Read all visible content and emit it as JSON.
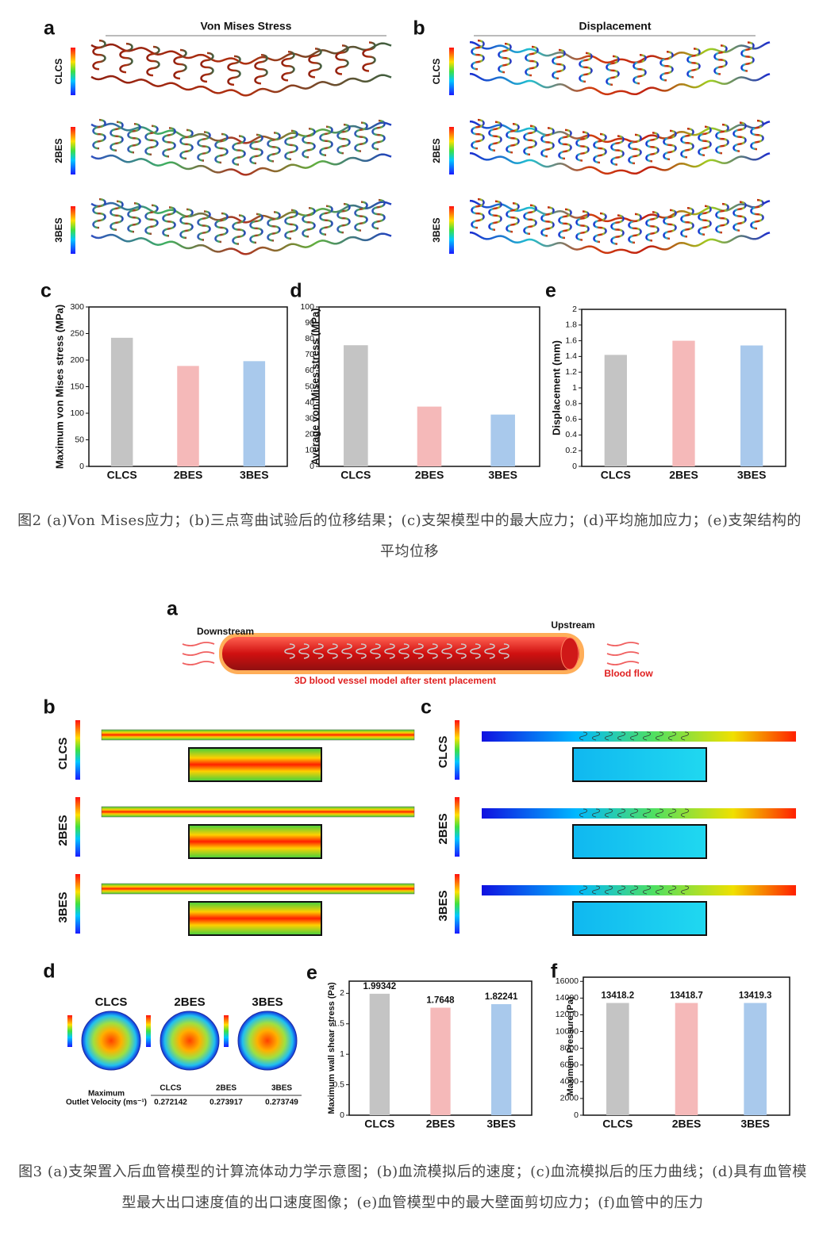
{
  "fig2": {
    "panel_labels": [
      "a",
      "b",
      "c",
      "d",
      "e"
    ],
    "a_title": "Von Mises Stress",
    "b_title": "Displacement",
    "rows": [
      "CLCS",
      "2BES",
      "3BES"
    ],
    "caption": "图2 (a)Von Mises应力；(b)三点弯曲试验后的位移结果；(c)支架模型中的最大应力；(d)平均施加应力；(e)支架结构的平均位移"
  },
  "fig3": {
    "panel_labels": [
      "a",
      "b",
      "c",
      "d",
      "e",
      "f"
    ],
    "rows": [
      "CLCS",
      "2BES",
      "3BES"
    ],
    "schematic": {
      "downstream": "Downstream",
      "upstream": "Upstream",
      "model": "3D blood vessel model after stent placement",
      "flow": "Blood flow"
    },
    "outlet": {
      "label": [
        "Maximum",
        "Outlet Velocity (ms⁻¹)"
      ],
      "values": [
        0.272142,
        0.273917,
        0.273749
      ]
    },
    "caption": "图3 (a)支架置入后血管模型的计算流体动力学示意图；(b)血流模拟后的速度；(c)血流模拟后的压力曲线；(d)具有血管模型最大出口速度值的出口速度图像；(e)血管模型中的最大壁面剪切应力；(f)血管中的压力"
  },
  "chart_data": [
    {
      "type": "bar",
      "ylabel": "Maximum von Mises stress (MPa)",
      "categories": [
        "CLCS",
        "2BES",
        "3BES"
      ],
      "values": [
        242,
        189,
        198
      ],
      "colors": [
        "#c4c4c4",
        "#f5b9b9",
        "#a9c9ec"
      ],
      "ylim": [
        0,
        300
      ],
      "yticks": [
        0,
        50,
        100,
        150,
        200,
        250,
        300
      ],
      "data_labels": false
    },
    {
      "type": "bar",
      "ylabel": "Average von Mises stress (MPa)",
      "categories": [
        "CLCS",
        "2BES",
        "3BES"
      ],
      "values": [
        76,
        37.5,
        32.5
      ],
      "colors": [
        "#c4c4c4",
        "#f5b9b9",
        "#a9c9ec"
      ],
      "ylim": [
        0,
        100
      ],
      "yticks": [
        0,
        10,
        20,
        30,
        40,
        50,
        60,
        70,
        80,
        90,
        100
      ],
      "data_labels": false
    },
    {
      "type": "bar",
      "ylabel": "Displacement (mm)",
      "categories": [
        "CLCS",
        "2BES",
        "3BES"
      ],
      "values": [
        1.42,
        1.6,
        1.54
      ],
      "colors": [
        "#c4c4c4",
        "#f5b9b9",
        "#a9c9ec"
      ],
      "ylim": [
        0,
        2
      ],
      "yticks": [
        0,
        0.2,
        0.4,
        0.6,
        0.8,
        1,
        1.2,
        1.4,
        1.6,
        1.8,
        2
      ],
      "data_labels": false
    },
    {
      "type": "bar",
      "ylabel": "Maximum wall shear stress (Pa)",
      "categories": [
        "CLCS",
        "2BES",
        "3BES"
      ],
      "values": [
        1.99342,
        1.7648,
        1.82241
      ],
      "colors": [
        "#c4c4c4",
        "#f5b9b9",
        "#a9c9ec"
      ],
      "ylim": [
        0,
        2.2
      ],
      "yticks": [
        0,
        0.5,
        1,
        1.5,
        2
      ],
      "data_labels": true
    },
    {
      "type": "bar",
      "ylabel": "Maximum Pressure (Pa)",
      "categories": [
        "CLCS",
        "2BES",
        "3BES"
      ],
      "values": [
        13418.2,
        13418.7,
        13419.3
      ],
      "colors": [
        "#c4c4c4",
        "#f5b9b9",
        "#a9c9ec"
      ],
      "ylim": [
        0,
        16500
      ],
      "yticks": [
        0,
        2000,
        4000,
        6000,
        8000,
        10000,
        12000,
        14000,
        16000
      ],
      "data_labels": true
    }
  ]
}
